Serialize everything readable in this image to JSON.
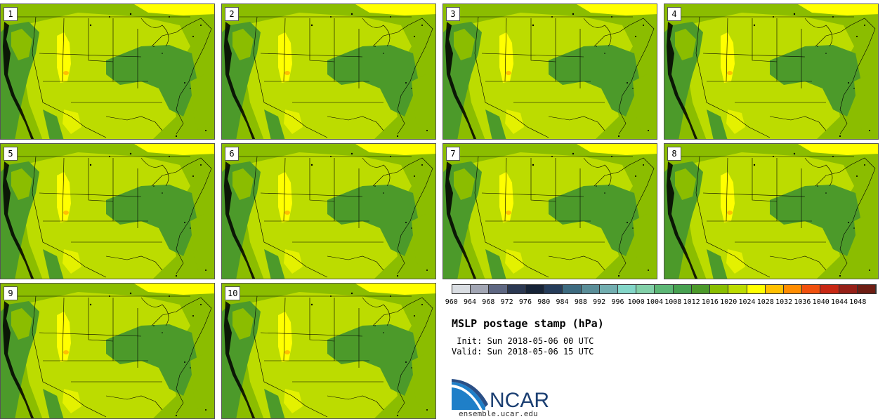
{
  "panels": [
    {
      "label": "1"
    },
    {
      "label": "2"
    },
    {
      "label": "3"
    },
    {
      "label": "4"
    },
    {
      "label": "5"
    },
    {
      "label": "6"
    },
    {
      "label": "7"
    },
    {
      "label": "8"
    },
    {
      "label": "9"
    },
    {
      "label": "10"
    }
  ],
  "colorbar": {
    "ticks": [
      "960",
      "964",
      "968",
      "972",
      "976",
      "980",
      "984",
      "988",
      "992",
      "996",
      "1000",
      "1004",
      "1008",
      "1012",
      "1016",
      "1020",
      "1024",
      "1028",
      "1032",
      "1036",
      "1040",
      "1044",
      "1048"
    ],
    "colors": [
      "#d9dde2",
      "#a2a6b4",
      "#5e6782",
      "#2b3852",
      "#162337",
      "#253c5a",
      "#3d6b80",
      "#5a8e98",
      "#72aeb0",
      "#83d6c8",
      "#82d0a8",
      "#5cb775",
      "#47a150",
      "#4c9a2a",
      "#8abf00",
      "#bcdc00",
      "#ffff00",
      "#ffc000",
      "#ff8c00",
      "#f0500e",
      "#c82814",
      "#962018",
      "#6e1e14"
    ]
  },
  "title": "MSLP postage stamp (hPa)",
  "init": " Init: Sun 2018-05-06 00 UTC",
  "valid": "Valid: Sun 2018-05-06 15 UTC",
  "logo": {
    "text": "NCAR"
  },
  "site": "ensemble.ucar.edu"
}
